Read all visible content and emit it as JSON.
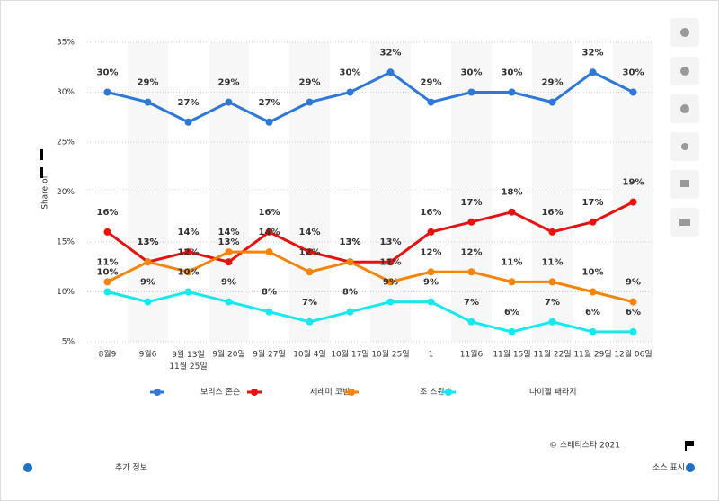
{
  "chart_data": {
    "type": "line",
    "y_label": "Share of",
    "categories": [
      "8월9",
      "9월6",
      "9월 13일\n11월 25일",
      "9월 20일",
      "9월 27일",
      "10월 4일",
      "10월 17일",
      "10월 25일",
      "1",
      "11월6",
      "11월 15일",
      "11월 22일",
      "11월 29일",
      "12월 06일"
    ],
    "series": [
      {
        "name": "보리스 존슨",
        "color": "#2f78d7",
        "values": [
          30,
          29,
          27,
          29,
          27,
          29,
          30,
          32,
          29,
          30,
          30,
          29,
          32,
          30
        ],
        "value_labels": [
          "30%",
          "29%",
          "27%",
          "29%",
          "27%",
          "29%",
          "30%",
          "32%",
          "29%",
          "30%",
          "30%",
          "29%",
          "32%",
          "30%"
        ]
      },
      {
        "name": "제레미 코빈",
        "color": "#e8110f",
        "values": [
          16,
          13,
          14,
          13,
          16,
          14,
          13,
          13,
          16,
          17,
          18,
          16,
          17,
          19
        ],
        "value_labels": [
          "16%",
          "13%",
          "14%",
          "13%",
          "16%",
          "14%",
          "13%",
          "13%",
          "16%",
          "17%",
          "18%",
          "16%",
          "17%",
          "19%"
        ]
      },
      {
        "name": "조 스윈슨",
        "color": "#f4840a",
        "values": [
          11,
          13,
          12,
          14,
          14,
          12,
          13,
          11,
          12,
          12,
          11,
          11,
          10,
          9
        ],
        "value_labels": [
          "11%",
          "13%",
          "12%",
          "14%",
          "14%",
          "12%",
          "13%",
          "11%",
          "12%",
          "12%",
          "11%",
          "11%",
          "10%",
          "9%"
        ]
      },
      {
        "name": "나이젤 패라지",
        "color": "#17e8ee",
        "values": [
          10,
          9,
          10,
          9,
          8,
          7,
          8,
          9,
          9,
          7,
          6,
          7,
          6,
          6
        ],
        "value_labels": [
          "10%",
          "9%",
          "10%",
          "9%",
          "8%",
          "7%",
          "8%",
          "9%",
          "9%",
          "7%",
          "6%",
          "7%",
          "6%",
          "6%"
        ]
      }
    ],
    "ylim": [
      5,
      35
    ],
    "yticks": [
      {
        "value": 5,
        "label": "5%"
      },
      {
        "value": 10,
        "label": "10%"
      },
      {
        "value": 15,
        "label": "15%"
      },
      {
        "value": 20,
        "label": "20%"
      },
      {
        "value": 25,
        "label": "25%"
      },
      {
        "value": 30,
        "label": "30%"
      },
      {
        "value": 35,
        "label": "35%"
      }
    ],
    "grid": true
  },
  "footer": {
    "copyright": "© 스태티스타 2021",
    "more_info": "추가 정보",
    "source": "소스 표시"
  }
}
